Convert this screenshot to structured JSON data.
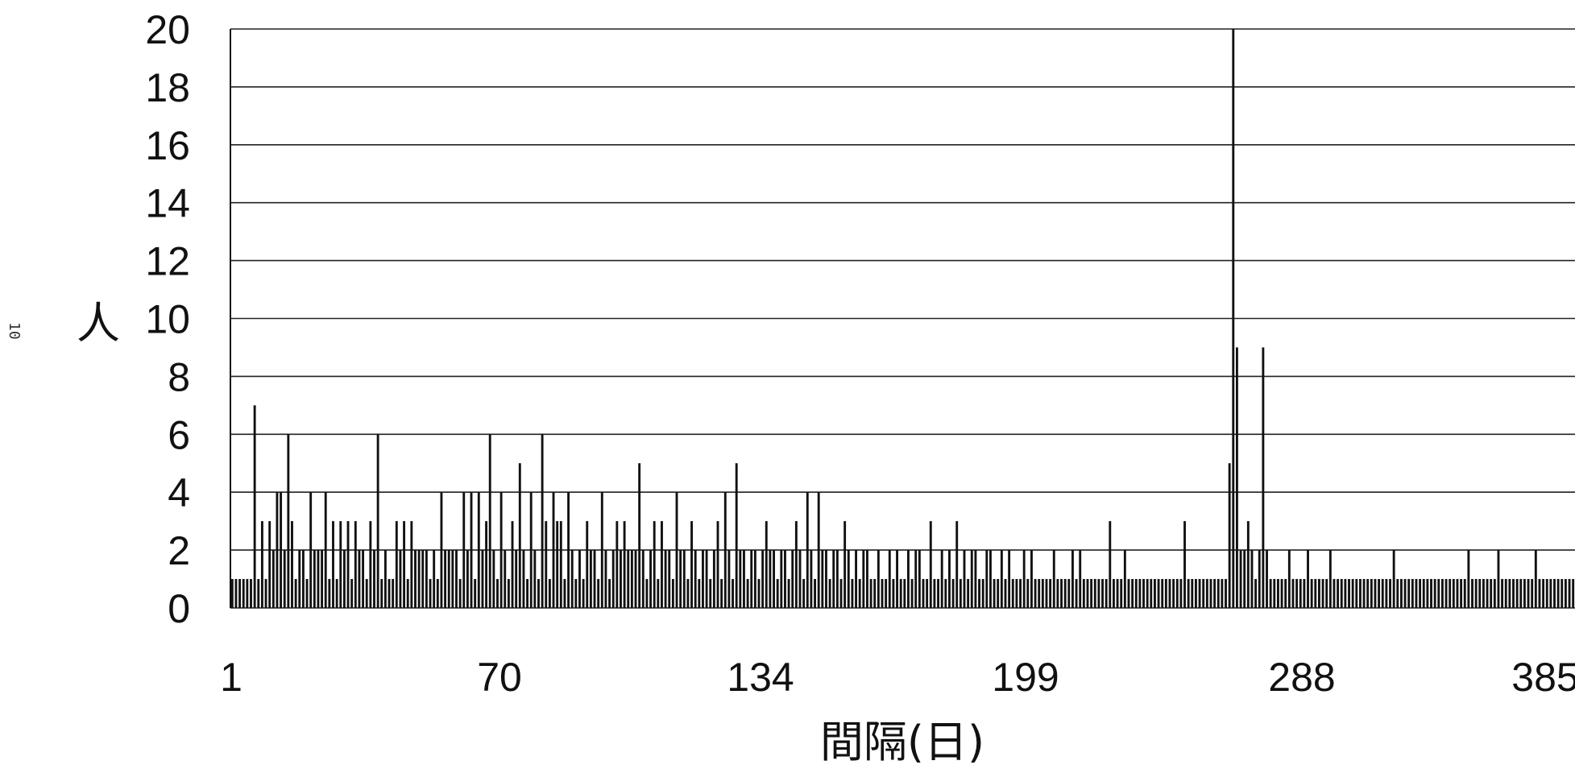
{
  "page": {
    "margin_note": "10"
  },
  "chart_data": {
    "type": "bar",
    "xlabel": "間隔(日)",
    "ylabel": "人",
    "ylim": [
      0,
      20
    ],
    "yticks": [
      "0",
      "2",
      "4",
      "6",
      "8",
      "10",
      "12",
      "14",
      "16",
      "18",
      "20"
    ],
    "xticks": [
      "1",
      "70",
      "134",
      "199",
      "288",
      "385"
    ],
    "grid": true,
    "values": [
      1,
      1,
      1,
      1,
      1,
      1,
      7,
      1,
      3,
      1,
      3,
      2,
      4,
      4,
      2,
      6,
      3,
      1,
      2,
      2,
      1,
      4,
      2,
      2,
      2,
      4,
      1,
      3,
      1,
      3,
      2,
      3,
      1,
      3,
      2,
      2,
      1,
      3,
      2,
      6,
      1,
      2,
      1,
      1,
      3,
      2,
      3,
      1,
      3,
      2,
      2,
      2,
      2,
      1,
      2,
      1,
      4,
      2,
      2,
      2,
      2,
      1,
      4,
      2,
      4,
      1,
      4,
      2,
      3,
      6,
      2,
      1,
      4,
      2,
      1,
      3,
      2,
      5,
      2,
      1,
      4,
      2,
      1,
      6,
      3,
      1,
      4,
      3,
      3,
      1,
      4,
      2,
      1,
      2,
      1,
      3,
      2,
      2,
      1,
      4,
      2,
      1,
      2,
      3,
      2,
      3,
      2,
      2,
      2,
      5,
      2,
      1,
      2,
      3,
      1,
      3,
      2,
      2,
      1,
      4,
      2,
      2,
      1,
      3,
      2,
      1,
      2,
      2,
      1,
      2,
      3,
      1,
      4,
      2,
      1,
      5,
      2,
      2,
      1,
      2,
      2,
      1,
      2,
      3,
      2,
      2,
      1,
      2,
      2,
      1,
      2,
      3,
      2,
      1,
      4,
      2,
      1,
      4,
      2,
      2,
      1,
      2,
      2,
      1,
      3,
      2,
      1,
      2,
      1,
      2,
      2,
      1,
      1,
      2,
      1,
      1,
      2,
      1,
      2,
      1,
      1,
      2,
      1,
      2,
      2,
      1,
      1,
      3,
      1,
      1,
      2,
      1,
      2,
      1,
      3,
      1,
      2,
      1,
      2,
      2,
      1,
      1,
      2,
      2,
      1,
      1,
      2,
      1,
      2,
      1,
      1,
      1,
      2,
      1,
      2,
      1,
      1,
      1,
      1,
      1,
      2,
      1,
      1,
      1,
      1,
      2,
      1,
      2,
      1,
      1,
      1,
      1,
      1,
      1,
      1,
      3,
      1,
      1,
      1,
      2,
      1,
      1,
      1,
      1,
      1,
      1,
      1,
      1,
      1,
      1,
      1,
      1,
      1,
      1,
      1,
      3,
      1,
      1,
      1,
      1,
      1,
      1,
      1,
      1,
      1,
      1,
      1,
      5,
      20,
      9,
      2,
      2,
      3,
      2,
      1,
      2,
      9,
      2,
      1,
      1,
      1,
      1,
      1,
      2,
      1,
      1,
      1,
      1,
      2,
      1,
      1,
      1,
      1,
      1,
      2,
      1,
      1,
      1,
      1,
      1,
      1,
      1,
      1,
      1,
      1,
      1,
      1,
      1,
      1,
      1,
      1,
      2,
      1,
      1,
      1,
      1,
      1,
      1,
      1,
      1,
      1,
      1,
      1,
      1,
      1,
      1,
      1,
      1,
      1,
      1,
      1,
      2,
      1,
      1,
      1,
      1,
      1,
      1,
      1,
      2,
      1,
      1,
      1,
      1,
      1,
      1,
      1,
      1,
      1,
      2,
      1,
      1,
      1,
      1,
      1,
      1,
      1,
      1,
      1,
      1
    ]
  }
}
